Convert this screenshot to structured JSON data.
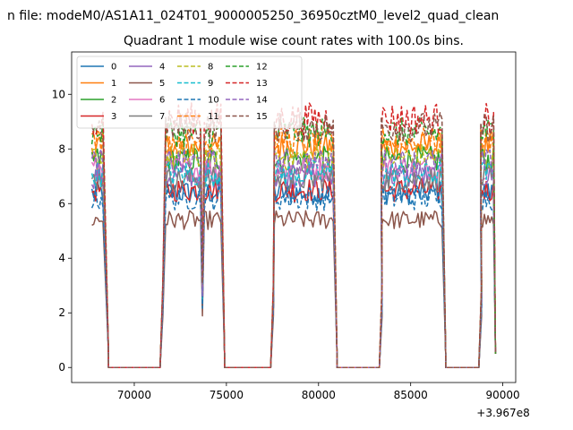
{
  "chart_data": {
    "type": "line",
    "suptitle": "n file: modeM0/AS1A11_024T01_9000005250_36950cztM0_level2_quad_clean",
    "title": "Quadrant 1 module wise count rates with 100.0s bins.",
    "xlabel": "",
    "ylabel": "",
    "x_offset_label": "+3.967e8",
    "xlim": [
      66600,
      90700
    ],
    "ylim": [
      -0.55,
      11.55
    ],
    "xticks": [
      70000,
      75000,
      80000,
      85000,
      90000
    ],
    "xtick_labels": [
      "70000",
      "75000",
      "80000",
      "85000",
      "90000"
    ],
    "yticks": [
      0,
      2,
      4,
      6,
      8,
      10
    ],
    "ytick_labels": [
      "0",
      "2",
      "4",
      "6",
      "8",
      "10"
    ],
    "grid": false,
    "legend_position": "top-left",
    "legend_columns": 4,
    "bin_seconds": 100,
    "segments": [
      {
        "on_start": 67700,
        "on_end": 68300,
        "fall_end": 68600
      },
      {
        "rise_start": 71400,
        "on_start": 71700,
        "on_end": 74700,
        "fall_end": 74900,
        "dip": 73700
      },
      {
        "rise_start": 77400,
        "on_start": 77600,
        "on_end": 80800,
        "fall_end": 81000
      },
      {
        "rise_start": 83300,
        "on_start": 83400,
        "on_end": 86700,
        "fall_end": 86900
      },
      {
        "rise_start": 88700,
        "on_start": 88800,
        "on_end": 89500,
        "fall_end": 89600
      }
    ],
    "series": [
      {
        "name": "0",
        "color": "#1f77b4",
        "dash": "solid",
        "level": 6.4,
        "noise": 0.45
      },
      {
        "name": "1",
        "color": "#ff7f0e",
        "dash": "solid",
        "level": 8.1,
        "noise": 0.5
      },
      {
        "name": "2",
        "color": "#2ca02c",
        "dash": "solid",
        "level": 7.6,
        "noise": 0.5
      },
      {
        "name": "3",
        "color": "#d62728",
        "dash": "solid",
        "level": 6.5,
        "noise": 0.45
      },
      {
        "name": "4",
        "color": "#9467bd",
        "dash": "solid",
        "level": 7.0,
        "noise": 0.45
      },
      {
        "name": "5",
        "color": "#8c564b",
        "dash": "solid",
        "level": 5.4,
        "noise": 0.35
      },
      {
        "name": "6",
        "color": "#e377c2",
        "dash": "solid",
        "level": 7.3,
        "noise": 0.45
      },
      {
        "name": "7",
        "color": "#7f7f7f",
        "dash": "solid",
        "level": 6.9,
        "noise": 0.45
      },
      {
        "name": "8",
        "color": "#bcbd22",
        "dash": "dashed",
        "level": 7.7,
        "noise": 0.5
      },
      {
        "name": "9",
        "color": "#17becf",
        "dash": "dashed",
        "level": 7.1,
        "noise": 0.5
      },
      {
        "name": "10",
        "color": "#1f77b4",
        "dash": "dashed",
        "level": 6.2,
        "noise": 0.45
      },
      {
        "name": "11",
        "color": "#ff7f0e",
        "dash": "dashed",
        "level": 8.3,
        "noise": 0.5
      },
      {
        "name": "12",
        "color": "#2ca02c",
        "dash": "dashed",
        "level": 8.6,
        "noise": 0.55
      },
      {
        "name": "13",
        "color": "#d62728",
        "dash": "dashed",
        "level": 9.1,
        "noise": 0.6
      },
      {
        "name": "14",
        "color": "#9467bd",
        "dash": "dashed",
        "level": 7.5,
        "noise": 0.5
      },
      {
        "name": "15",
        "color": "#8c564b",
        "dash": "dashed",
        "level": 8.8,
        "noise": 0.55
      }
    ]
  }
}
